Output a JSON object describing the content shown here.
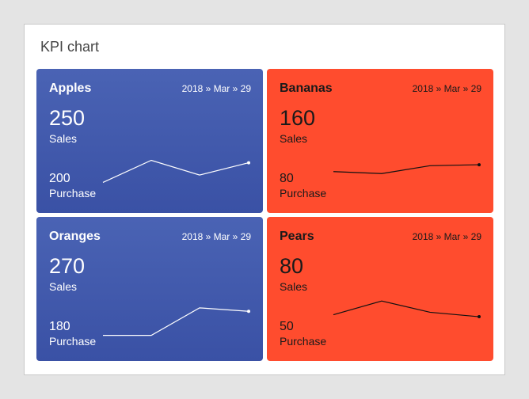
{
  "panel": {
    "title": "KPI chart"
  },
  "colors": {
    "blue_top": "#4a63b4",
    "blue_bottom": "#3a51a5",
    "orange": "#ff4c2e"
  },
  "tiles": [
    {
      "name": "Apples",
      "date": "2018 » Mar » 29",
      "value": "250",
      "value_label": "Sales",
      "purchase_value": "200",
      "purchase_label": "Purchase",
      "trend": [
        30,
        75,
        45,
        70
      ],
      "theme": "blue"
    },
    {
      "name": "Bananas",
      "date": "2018 » Mar » 29",
      "value": "160",
      "value_label": "Sales",
      "purchase_value": "80",
      "purchase_label": "Purchase",
      "trend": [
        52,
        48,
        64,
        66
      ],
      "theme": "red"
    },
    {
      "name": "Oranges",
      "date": "2018 » Mar » 29",
      "value": "270",
      "value_label": "Sales",
      "purchase_value": "180",
      "purchase_label": "Purchase",
      "trend": [
        20,
        20,
        76,
        69
      ],
      "theme": "blue"
    },
    {
      "name": "Pears",
      "date": "2018 » Mar » 29",
      "value": "80",
      "value_label": "Sales",
      "purchase_value": "50",
      "purchase_label": "Purchase",
      "trend": [
        62,
        90,
        67,
        58
      ],
      "theme": "red"
    }
  ]
}
